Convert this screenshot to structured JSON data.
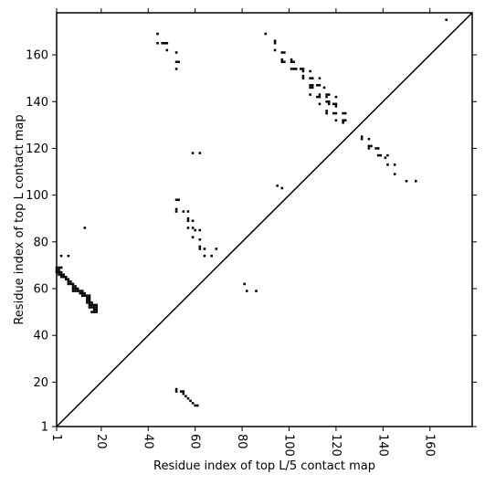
{
  "chart_data": {
    "type": "heatmap",
    "xlabel": "Residue index of top L/5 contact map",
    "ylabel": "Residue index of top L contact map",
    "xlim": [
      1,
      178
    ],
    "ylim": [
      1,
      178
    ],
    "x_ticks": [
      1,
      20,
      40,
      60,
      80,
      100,
      120,
      140,
      160
    ],
    "y_ticks": [
      1,
      20,
      40,
      60,
      80,
      100,
      120,
      140,
      160
    ],
    "diagonal": true,
    "mark_color": "#000000",
    "upper_triangle_contacts": [
      [
        44,
        169
      ],
      [
        44,
        165
      ],
      [
        46,
        165
      ],
      [
        47,
        165
      ],
      [
        48,
        165
      ],
      [
        48,
        162
      ],
      [
        52,
        161
      ],
      [
        52,
        157
      ],
      [
        53,
        157
      ],
      [
        52,
        154
      ],
      [
        59,
        118
      ],
      [
        62,
        118
      ],
      [
        52,
        98
      ],
      [
        53,
        98
      ],
      [
        52,
        94
      ],
      [
        52,
        93
      ],
      [
        55,
        93
      ],
      [
        57,
        93
      ],
      [
        57,
        90
      ],
      [
        57,
        89
      ],
      [
        59,
        89
      ],
      [
        57,
        86
      ],
      [
        59,
        86
      ],
      [
        60,
        85
      ],
      [
        62,
        85
      ],
      [
        59,
        82
      ],
      [
        62,
        81
      ],
      [
        62,
        78
      ],
      [
        62,
        77
      ],
      [
        64,
        77
      ],
      [
        69,
        77
      ],
      [
        64,
        74
      ],
      [
        67,
        74
      ],
      [
        13,
        86
      ],
      [
        3,
        74
      ],
      [
        6,
        74
      ],
      [
        81,
        62
      ],
      [
        82,
        59
      ],
      [
        86,
        59
      ],
      [
        90,
        169
      ],
      [
        94,
        166
      ],
      [
        94,
        165
      ],
      [
        94,
        162
      ],
      [
        97,
        161
      ],
      [
        98,
        161
      ],
      [
        97,
        158
      ],
      [
        98,
        157
      ],
      [
        97,
        157
      ],
      [
        101,
        158
      ],
      [
        101,
        157
      ],
      [
        102,
        157
      ],
      [
        101,
        154
      ],
      [
        102,
        154
      ],
      [
        103,
        154
      ],
      [
        105,
        154
      ],
      [
        106,
        154
      ],
      [
        106,
        153
      ],
      [
        106,
        151
      ],
      [
        106,
        150
      ],
      [
        109,
        153
      ],
      [
        109,
        150
      ],
      [
        110,
        150
      ],
      [
        113,
        150
      ],
      [
        109,
        147
      ],
      [
        110,
        147
      ],
      [
        109,
        146
      ],
      [
        110,
        146
      ],
      [
        112,
        147
      ],
      [
        113,
        147
      ],
      [
        115,
        146
      ],
      [
        109,
        143
      ],
      [
        113,
        143
      ],
      [
        112,
        142
      ],
      [
        113,
        142
      ],
      [
        116,
        143
      ],
      [
        116,
        142
      ],
      [
        117,
        143
      ],
      [
        120,
        142
      ],
      [
        113,
        139
      ],
      [
        116,
        140
      ],
      [
        117,
        140
      ],
      [
        117,
        139
      ],
      [
        119,
        139
      ],
      [
        120,
        139
      ],
      [
        120,
        138
      ],
      [
        116,
        136
      ],
      [
        116,
        135
      ],
      [
        119,
        135
      ],
      [
        120,
        135
      ],
      [
        123,
        135
      ],
      [
        124,
        135
      ],
      [
        123,
        132
      ],
      [
        124,
        132
      ],
      [
        123,
        131
      ],
      [
        120,
        132
      ],
      [
        131,
        125
      ],
      [
        131,
        124
      ],
      [
        134,
        124
      ],
      [
        134,
        121
      ],
      [
        135,
        121
      ],
      [
        134,
        120
      ],
      [
        137,
        120
      ],
      [
        138,
        120
      ],
      [
        138,
        117
      ],
      [
        139,
        117
      ],
      [
        141,
        116
      ],
      [
        142,
        117
      ],
      [
        142,
        113
      ],
      [
        145,
        113
      ],
      [
        145,
        109
      ],
      [
        150,
        106
      ],
      [
        154,
        106
      ],
      [
        95,
        104
      ],
      [
        97,
        103
      ],
      [
        167,
        175
      ]
    ],
    "lower_triangle_contacts": [
      [
        1,
        69
      ],
      [
        2,
        69
      ],
      [
        3,
        69
      ],
      [
        1,
        68
      ],
      [
        2,
        68
      ],
      [
        1,
        67
      ],
      [
        2,
        67
      ],
      [
        3,
        67
      ],
      [
        2,
        66
      ],
      [
        3,
        66
      ],
      [
        4,
        66
      ],
      [
        3,
        65
      ],
      [
        4,
        65
      ],
      [
        5,
        65
      ],
      [
        5,
        64
      ],
      [
        6,
        64
      ],
      [
        6,
        63
      ],
      [
        7,
        63
      ],
      [
        6,
        62
      ],
      [
        7,
        62
      ],
      [
        8,
        62
      ],
      [
        8,
        61
      ],
      [
        9,
        61
      ],
      [
        8,
        60
      ],
      [
        9,
        60
      ],
      [
        10,
        60
      ],
      [
        8,
        59
      ],
      [
        9,
        59
      ],
      [
        10,
        59
      ],
      [
        11,
        59
      ],
      [
        12,
        59
      ],
      [
        11,
        58
      ],
      [
        12,
        58
      ],
      [
        13,
        58
      ],
      [
        12,
        57
      ],
      [
        13,
        57
      ],
      [
        14,
        57
      ],
      [
        15,
        57
      ],
      [
        14,
        56
      ],
      [
        15,
        56
      ],
      [
        14,
        55
      ],
      [
        15,
        55
      ],
      [
        14,
        54
      ],
      [
        15,
        54
      ],
      [
        16,
        54
      ],
      [
        15,
        53
      ],
      [
        16,
        53
      ],
      [
        17,
        53
      ],
      [
        18,
        53
      ],
      [
        15,
        52
      ],
      [
        16,
        52
      ],
      [
        17,
        52
      ],
      [
        18,
        52
      ],
      [
        17,
        51
      ],
      [
        18,
        51
      ],
      [
        16,
        50
      ],
      [
        17,
        50
      ],
      [
        18,
        50
      ],
      [
        52,
        17
      ],
      [
        52,
        16
      ],
      [
        54,
        16
      ],
      [
        55,
        16
      ],
      [
        55,
        15
      ],
      [
        56,
        14
      ],
      [
        57,
        13
      ],
      [
        58,
        12
      ],
      [
        59,
        11
      ],
      [
        60,
        10
      ],
      [
        61,
        10
      ]
    ]
  }
}
